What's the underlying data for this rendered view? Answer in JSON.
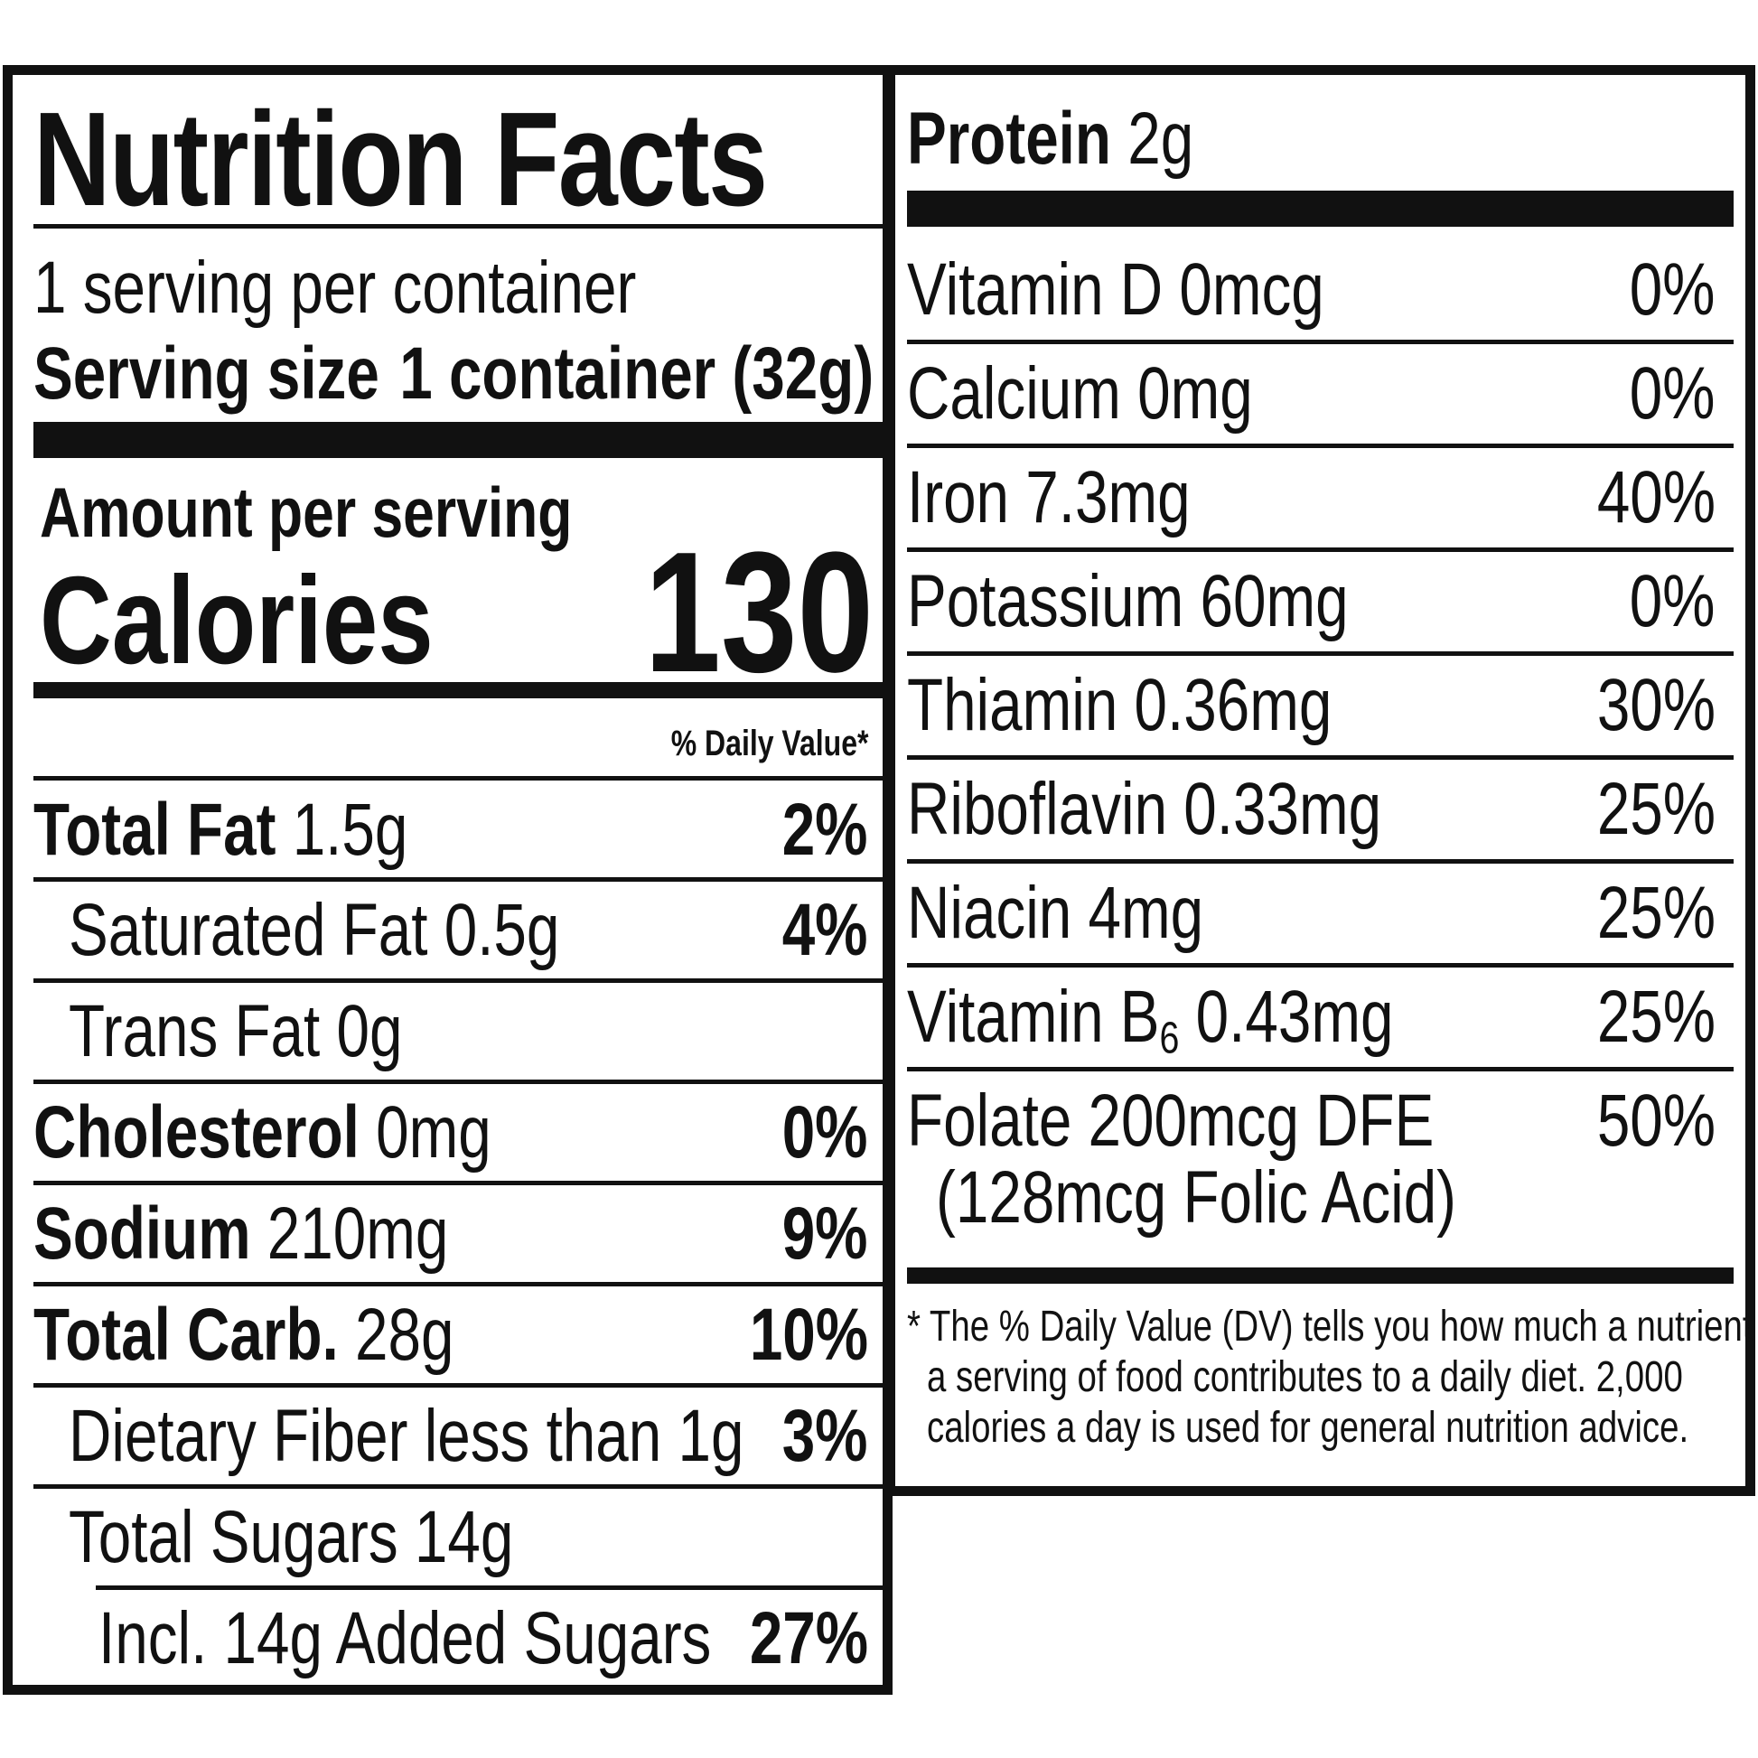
{
  "title": "Nutrition Facts",
  "servings_per_container": "1 serving per container",
  "serving_size": {
    "label": "Serving size",
    "value": "1 container (32g)"
  },
  "amount_per_serving": "Amount per serving",
  "calories": {
    "label": "Calories",
    "value": "130"
  },
  "daily_value_header": "% Daily Value*",
  "left_rows": [
    {
      "name": "Total Fat",
      "amount": "1.5g",
      "dv": "2%",
      "bold_name": true
    },
    {
      "name": "Saturated Fat",
      "amount": "0.5g",
      "dv": "4%",
      "bold_name": false
    },
    {
      "name": "Trans Fat",
      "amount": "0g",
      "dv": "",
      "bold_name": false
    },
    {
      "name": "Cholesterol",
      "amount": "0mg",
      "dv": "0%",
      "bold_name": true
    },
    {
      "name": "Sodium",
      "amount": "210mg",
      "dv": "9%",
      "bold_name": true
    },
    {
      "name": "Total Carb.",
      "amount": "28g",
      "dv": "10%",
      "bold_name": true
    },
    {
      "name": "Dietary Fiber less than",
      "amount": "1g",
      "dv": "3%",
      "bold_name": false
    },
    {
      "name": "Total Sugars",
      "amount": "14g",
      "dv": "",
      "bold_name": false
    },
    {
      "name": "Incl. 14g Added Sugars",
      "amount": "",
      "dv": "27%",
      "bold_name": false
    }
  ],
  "protein": {
    "name": "Protein",
    "amount": "2g"
  },
  "vitamins": [
    {
      "name": "Vitamin D 0mcg",
      "dv": "0%"
    },
    {
      "name": "Calcium 0mg",
      "dv": "0%"
    },
    {
      "name": "Iron 7.3mg",
      "dv": "40%"
    },
    {
      "name": "Potassium 60mg",
      "dv": "0%"
    },
    {
      "name": "Thiamin 0.36mg",
      "dv": "30%"
    },
    {
      "name": "Riboflavin 0.33mg",
      "dv": "25%"
    },
    {
      "name": "Niacin 4mg",
      "dv": "25%"
    },
    {
      "name_main": "Vitamin B",
      "name_sub": "6",
      "name_rest": " 0.43mg",
      "dv": "25%"
    },
    {
      "name": "Folate 200mcg DFE",
      "name_line2": "(128mcg Folic Acid)",
      "dv": "50%"
    }
  ],
  "footnote": [
    "* The % Daily Value (DV) tells you how much a nutrient in",
    "a serving of food contributes to a daily diet. 2,000",
    "calories a day is used for general nutrition advice."
  ]
}
